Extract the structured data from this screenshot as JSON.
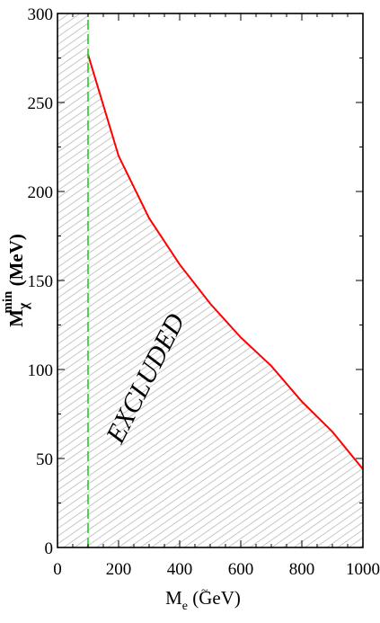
{
  "chart_data": {
    "type": "area",
    "xlabel": {
      "main": "M",
      "sub": "e",
      "sup": "~",
      "unit": "(GeV)"
    },
    "ylabel": {
      "main": "M",
      "sub": "χ",
      "sup": "min",
      "unit": "(MeV)"
    },
    "xlim": [
      0,
      1000
    ],
    "ylim": [
      0,
      300
    ],
    "x_ticks": [
      0,
      200,
      400,
      600,
      800,
      1000
    ],
    "y_ticks": [
      0,
      50,
      100,
      150,
      200,
      250,
      300
    ],
    "annotation": "EXCLUDED",
    "vertical_line": {
      "x": 100,
      "style": "dashed",
      "color": "#22cc22"
    },
    "series": [
      {
        "style": "solid",
        "color": "#ff0000",
        "x": [
          100,
          200,
          300,
          400,
          500,
          600,
          700,
          800,
          900,
          1000
        ],
        "y": [
          277,
          220,
          185,
          159,
          137,
          118,
          102,
          82,
          65,
          44
        ]
      }
    ],
    "shaded_region": "below curve",
    "grid": false,
    "legend": "none"
  }
}
